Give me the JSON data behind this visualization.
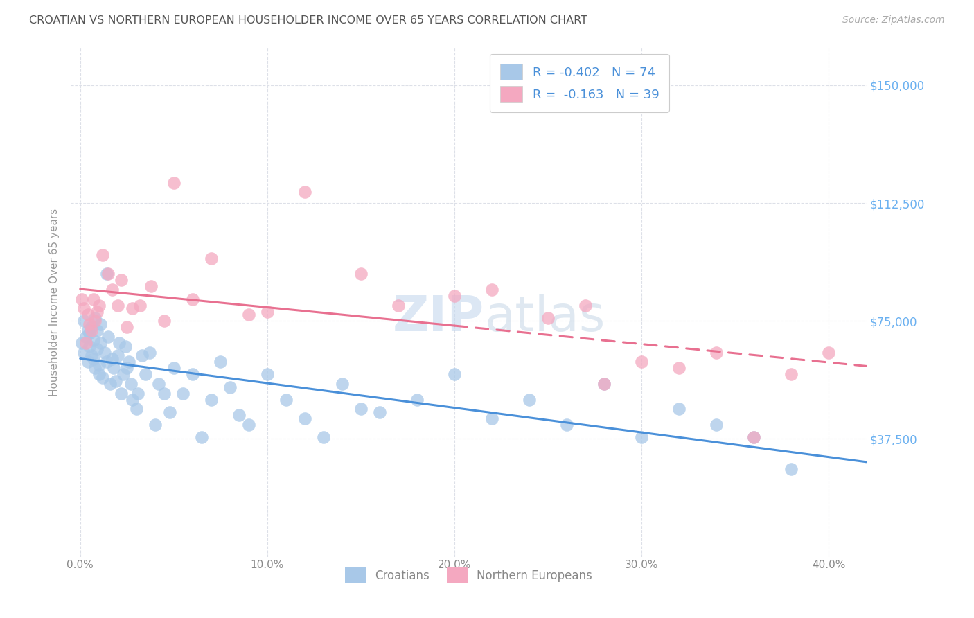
{
  "title": "CROATIAN VS NORTHERN EUROPEAN HOUSEHOLDER INCOME OVER 65 YEARS CORRELATION CHART",
  "source": "Source: ZipAtlas.com",
  "ylabel": "Householder Income Over 65 years",
  "xlabel_ticks": [
    "0.0%",
    "10.0%",
    "20.0%",
    "30.0%",
    "40.0%"
  ],
  "xlabel_vals": [
    0.0,
    0.1,
    0.2,
    0.3,
    0.4
  ],
  "ytick_labels": [
    "$37,500",
    "$75,000",
    "$112,500",
    "$150,000"
  ],
  "ytick_vals": [
    37500,
    75000,
    112500,
    150000
  ],
  "ylim": [
    0,
    162000
  ],
  "xlim": [
    -0.005,
    0.42
  ],
  "croatian_R": "-0.402",
  "croatian_N": "74",
  "northern_R": "-0.163",
  "northern_N": "39",
  "croatian_color": "#a8c8e8",
  "northern_color": "#f4a8c0",
  "croatian_line_color": "#4a90d9",
  "northern_line_color": "#e87090",
  "watermark_zip": "ZIP",
  "watermark_atlas": "atlas",
  "background_color": "#ffffff",
  "grid_color": "#dde0e8",
  "title_color": "#555555",
  "right_label_color": "#6ab0f0",
  "source_color": "#aaaaaa",
  "croatian_x": [
    0.001,
    0.002,
    0.002,
    0.003,
    0.004,
    0.004,
    0.005,
    0.005,
    0.006,
    0.006,
    0.007,
    0.007,
    0.008,
    0.008,
    0.009,
    0.009,
    0.01,
    0.01,
    0.011,
    0.011,
    0.012,
    0.013,
    0.014,
    0.014,
    0.015,
    0.016,
    0.017,
    0.018,
    0.019,
    0.02,
    0.021,
    0.022,
    0.023,
    0.024,
    0.025,
    0.026,
    0.027,
    0.028,
    0.03,
    0.031,
    0.033,
    0.035,
    0.037,
    0.04,
    0.042,
    0.045,
    0.048,
    0.05,
    0.055,
    0.06,
    0.065,
    0.07,
    0.075,
    0.08,
    0.085,
    0.09,
    0.1,
    0.11,
    0.12,
    0.13,
    0.14,
    0.15,
    0.16,
    0.18,
    0.2,
    0.22,
    0.24,
    0.26,
    0.28,
    0.3,
    0.32,
    0.34,
    0.36,
    0.38
  ],
  "croatian_y": [
    68000,
    75000,
    65000,
    70000,
    72000,
    62000,
    67000,
    71000,
    64000,
    73000,
    69000,
    63000,
    76000,
    60000,
    66000,
    72000,
    58000,
    61000,
    74000,
    68000,
    57000,
    65000,
    90000,
    62000,
    70000,
    55000,
    63000,
    60000,
    56000,
    64000,
    68000,
    52000,
    58000,
    67000,
    60000,
    62000,
    55000,
    50000,
    47000,
    52000,
    64000,
    58000,
    65000,
    42000,
    55000,
    52000,
    46000,
    60000,
    52000,
    58000,
    38000,
    50000,
    62000,
    54000,
    45000,
    42000,
    58000,
    50000,
    44000,
    38000,
    55000,
    47000,
    46000,
    50000,
    58000,
    44000,
    50000,
    42000,
    55000,
    38000,
    47000,
    42000,
    38000,
    28000
  ],
  "northern_x": [
    0.001,
    0.002,
    0.003,
    0.004,
    0.005,
    0.006,
    0.007,
    0.008,
    0.009,
    0.01,
    0.012,
    0.015,
    0.017,
    0.02,
    0.022,
    0.025,
    0.028,
    0.032,
    0.038,
    0.045,
    0.05,
    0.06,
    0.07,
    0.09,
    0.1,
    0.12,
    0.15,
    0.17,
    0.2,
    0.22,
    0.25,
    0.27,
    0.28,
    0.3,
    0.32,
    0.34,
    0.36,
    0.38,
    0.4
  ],
  "northern_y": [
    82000,
    79000,
    68000,
    77000,
    74000,
    72000,
    82000,
    75000,
    78000,
    80000,
    96000,
    90000,
    85000,
    80000,
    88000,
    73000,
    79000,
    80000,
    86000,
    75000,
    119000,
    82000,
    95000,
    77000,
    78000,
    116000,
    90000,
    80000,
    83000,
    85000,
    76000,
    80000,
    55000,
    62000,
    60000,
    65000,
    38000,
    58000,
    65000
  ]
}
